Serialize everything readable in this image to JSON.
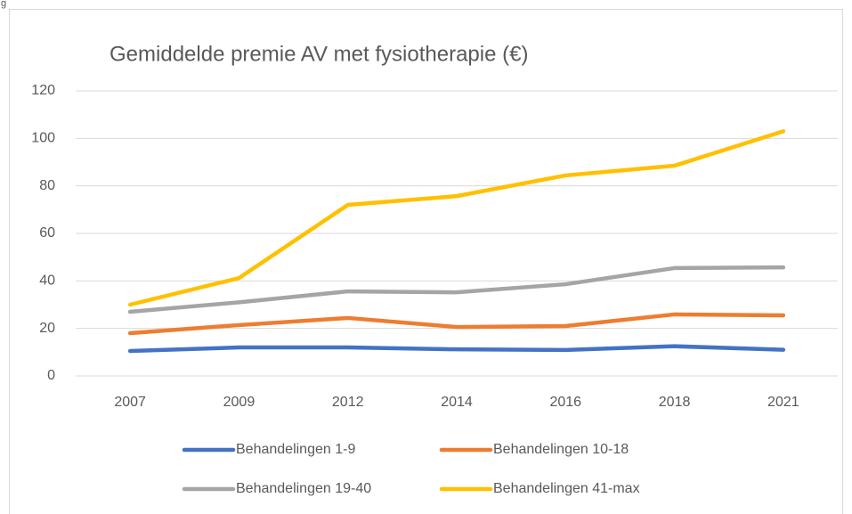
{
  "page_label": "g",
  "chart_data": {
    "type": "line",
    "title": "Gemiddelde premie AV met fysiotherapie (€)",
    "categories": [
      "2007",
      "2009",
      "2012",
      "2014",
      "2016",
      "2018",
      "2021"
    ],
    "series": [
      {
        "name": "Behandelingen 1-9",
        "color": "#4472c4",
        "values": [
          10.5,
          12,
          12,
          11.2,
          10.9,
          12.5,
          11
        ]
      },
      {
        "name": "Behandelingen 10-18",
        "color": "#ed7d31",
        "values": [
          18,
          21.4,
          24.4,
          20.6,
          21,
          25.9,
          25.5
        ]
      },
      {
        "name": "Behandelingen 19-40",
        "color": "#a5a5a5",
        "values": [
          27,
          31,
          35.6,
          35.2,
          38.6,
          45.4,
          45.7
        ]
      },
      {
        "name": "Behandelingen 41-max",
        "color": "#ffc000",
        "values": [
          30,
          41.2,
          72,
          75.7,
          84.4,
          88.5,
          103
        ]
      }
    ],
    "ylim": [
      0,
      120
    ],
    "yticks": [
      0,
      20,
      40,
      60,
      80,
      100,
      120
    ],
    "grid": true,
    "legend": "bottom"
  }
}
